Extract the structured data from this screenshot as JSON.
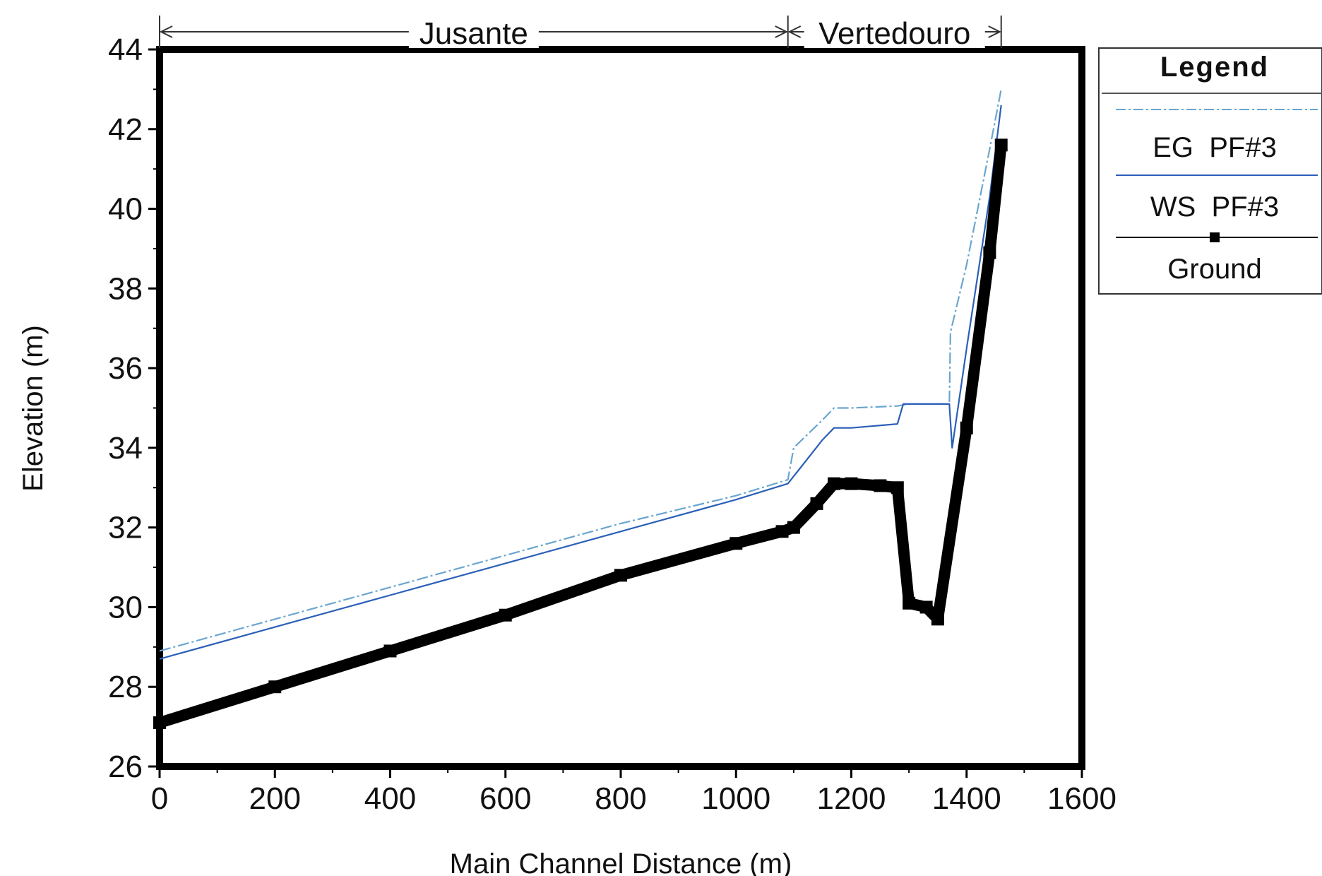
{
  "chart_data": {
    "type": "line",
    "xlabel": "Main Channel Distance (m)",
    "ylabel": "Elevation (m)",
    "xlim": [
      0,
      1600
    ],
    "ylim": [
      26,
      44
    ],
    "x_ticks": [
      0,
      200,
      400,
      600,
      800,
      1000,
      1200,
      1400,
      1600
    ],
    "y_ticks": [
      26,
      28,
      30,
      32,
      34,
      36,
      38,
      40,
      42,
      44
    ],
    "x_tick_labels": [
      "0",
      "200",
      "400",
      "600",
      "800",
      "1000",
      "1200",
      "1400",
      "1600"
    ],
    "y_tick_labels": [
      "26",
      "28",
      "30",
      "32",
      "34",
      "36",
      "38",
      "40",
      "42",
      "44"
    ],
    "grid": false,
    "reaches": [
      {
        "label": "Jusante",
        "x_start": 0,
        "x_end": 1090
      },
      {
        "label": "Vertedouro",
        "x_start": 1090,
        "x_end": 1460
      }
    ],
    "legend": {
      "title": "Legend",
      "placement": "right",
      "entries": [
        "EG  PF#3",
        "WS  PF#3",
        "Ground"
      ]
    },
    "series": [
      {
        "name": "EG  PF#3",
        "color": "#6aa6cf",
        "x": [
          0,
          200,
          400,
          600,
          800,
          1000,
          1090,
          1100,
          1150,
          1170,
          1200,
          1280,
          1300,
          1370,
          1372,
          1400,
          1440,
          1460
        ],
        "y": [
          28.9,
          29.7,
          30.5,
          31.3,
          32.1,
          32.8,
          33.2,
          34.0,
          34.7,
          35.0,
          35.0,
          35.05,
          35.1,
          35.1,
          36.9,
          38.6,
          41.5,
          43.0
        ]
      },
      {
        "name": "WS  PF#3",
        "color": "#2b5fb8",
        "x": [
          0,
          200,
          400,
          600,
          800,
          1000,
          1090,
          1150,
          1170,
          1200,
          1280,
          1290,
          1370,
          1375,
          1400,
          1440,
          1460
        ],
        "y": [
          28.7,
          29.5,
          30.3,
          31.1,
          31.9,
          32.7,
          33.1,
          34.2,
          34.5,
          34.5,
          34.6,
          35.1,
          35.1,
          34.0,
          36.5,
          40.3,
          42.6
        ]
      },
      {
        "name": "Ground",
        "color": "#000000",
        "x": [
          0,
          200,
          400,
          600,
          800,
          1000,
          1080,
          1100,
          1140,
          1170,
          1200,
          1250,
          1280,
          1300,
          1330,
          1350,
          1400,
          1440,
          1460
        ],
        "y": [
          27.1,
          28.0,
          28.9,
          29.8,
          30.8,
          31.6,
          31.9,
          32.0,
          32.6,
          33.1,
          33.1,
          33.05,
          33.0,
          30.1,
          30.0,
          29.7,
          34.5,
          38.9,
          41.6
        ]
      }
    ]
  }
}
